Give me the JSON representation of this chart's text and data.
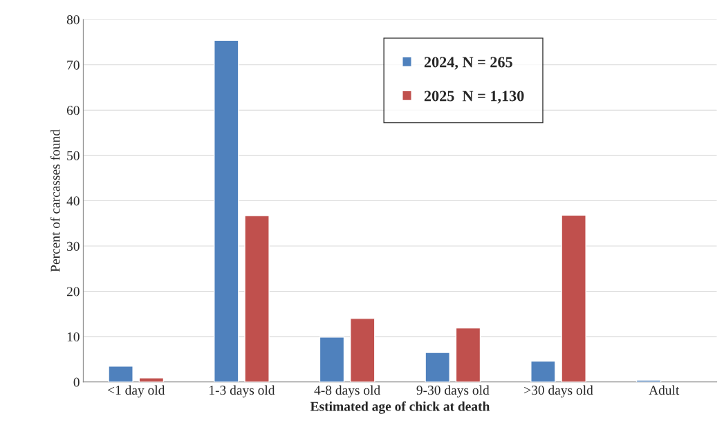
{
  "chart_data": {
    "type": "bar",
    "xlabel": "Estimated age of chick at death",
    "ylabel": "Percent of carcasses found",
    "categories": [
      "<1 day old",
      "1-3 days old",
      "4-8 days old",
      "9-30 days old",
      ">30 days old",
      "Adult"
    ],
    "series": [
      {
        "name": "2024, N = 265",
        "color": "#4f81bd",
        "values": [
          3.5,
          75.4,
          9.9,
          6.5,
          4.6,
          0.4
        ]
      },
      {
        "name": "2025  N = 1,130",
        "color": "#c0504d",
        "values": [
          0.9,
          36.7,
          14.0,
          11.9,
          36.8,
          null
        ]
      }
    ],
    "ylim": [
      0,
      80
    ],
    "yticks": [
      0,
      10,
      20,
      30,
      40,
      50,
      60,
      70,
      80
    ],
    "grid": "y",
    "legend": "top"
  }
}
